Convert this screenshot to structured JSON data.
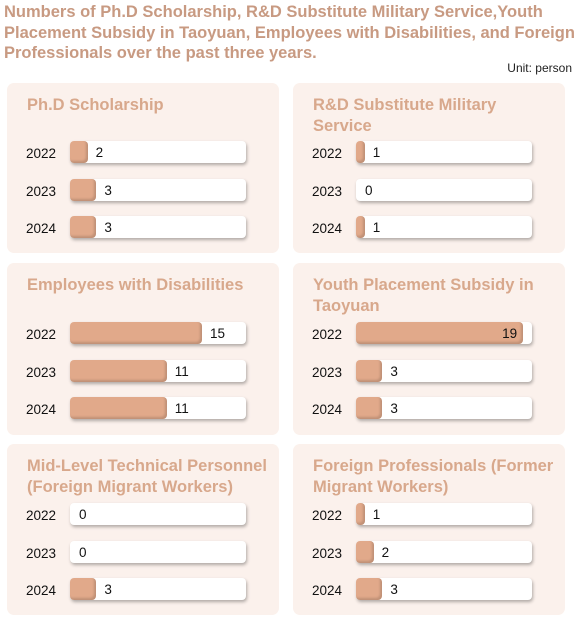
{
  "title": "Numbers of Ph.D Scholarship, R&D Substitute Military Service,Youth Placement Subsidy in Taoyuan, Employees with Disabilities, and Foreign Professionals over the past three years.",
  "unit": "Unit: person",
  "colors": {
    "bar": "#e1a98a",
    "panel": "#fbf1ec",
    "title": "#c89a82"
  },
  "chart_data": [
    {
      "type": "bar",
      "title": "Ph.D Scholarship",
      "categories": [
        "2022",
        "2023",
        "2024"
      ],
      "values": [
        2,
        3,
        3
      ],
      "xlim": [
        0,
        20
      ]
    },
    {
      "type": "bar",
      "title": "R&D Substitute Military Service",
      "categories": [
        "2022",
        "2023",
        "2024"
      ],
      "values": [
        1,
        0,
        1
      ],
      "xlim": [
        0,
        20
      ]
    },
    {
      "type": "bar",
      "title": "Employees with Disabilities",
      "categories": [
        "2022",
        "2023",
        "2024"
      ],
      "values": [
        15,
        11,
        11
      ],
      "xlim": [
        0,
        20
      ]
    },
    {
      "type": "bar",
      "title": "Youth Placement Subsidy in Taoyuan",
      "categories": [
        "2022",
        "2023",
        "2024"
      ],
      "values": [
        19,
        3,
        3
      ],
      "xlim": [
        0,
        20
      ]
    },
    {
      "type": "bar",
      "title": "Mid-Level Technical Personnel (Foreign Migrant Workers)",
      "categories": [
        "2022",
        "2023",
        "2024"
      ],
      "values": [
        0,
        0,
        3
      ],
      "xlim": [
        0,
        20
      ]
    },
    {
      "type": "bar",
      "title": "Foreign Professionals (Former Migrant Workers)",
      "categories": [
        "2022",
        "2023",
        "2024"
      ],
      "values": [
        1,
        2,
        3
      ],
      "xlim": [
        0,
        20
      ]
    }
  ]
}
